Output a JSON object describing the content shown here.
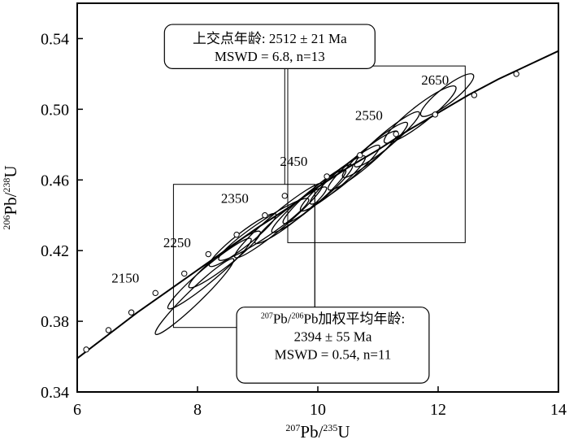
{
  "chart_data": {
    "type": "scatter",
    "x_axis": {
      "range": [
        6,
        14
      ],
      "ticks": [
        6,
        8,
        10,
        12,
        14
      ],
      "tick_labels": [
        "6",
        "8",
        "10",
        "12",
        "14"
      ],
      "label": {
        "sup1": "207",
        "main1": "Pb/",
        "sup2": "235",
        "main2": "U"
      }
    },
    "y_axis": {
      "range": [
        0.34,
        0.56
      ],
      "ticks": [
        0.34,
        0.38,
        0.42,
        0.46,
        0.5,
        0.54
      ],
      "tick_labels": [
        "0.34",
        "0.38",
        "0.42",
        "0.46",
        "0.50",
        "0.54"
      ],
      "label": {
        "sup1": "206",
        "main1": "Pb/",
        "sup2": "238",
        "main2": "U"
      }
    },
    "concordia": {
      "x": [
        6.0,
        6.5,
        7.0,
        7.5,
        8.0,
        8.5,
        9.0,
        9.5,
        10.0,
        10.5,
        11.0,
        11.5,
        12.0,
        12.5,
        13.0,
        13.5,
        14.0
      ],
      "y": [
        0.359,
        0.372,
        0.385,
        0.397,
        0.409,
        0.421,
        0.433,
        0.444,
        0.456,
        0.467,
        0.477,
        0.488,
        0.498,
        0.508,
        0.517,
        0.525,
        0.533
      ]
    },
    "age_markers": [
      {
        "x": 6.15,
        "y": 0.364
      },
      {
        "x": 6.52,
        "y": 0.375
      },
      {
        "x": 6.9,
        "y": 0.385
      },
      {
        "x": 7.3,
        "y": 0.396
      },
      {
        "x": 7.78,
        "y": 0.407
      },
      {
        "x": 8.18,
        "y": 0.418
      },
      {
        "x": 8.65,
        "y": 0.429
      },
      {
        "x": 9.12,
        "y": 0.44
      },
      {
        "x": 9.45,
        "y": 0.451
      },
      {
        "x": 10.15,
        "y": 0.462
      },
      {
        "x": 10.7,
        "y": 0.474
      },
      {
        "x": 11.3,
        "y": 0.486
      },
      {
        "x": 11.95,
        "y": 0.497
      },
      {
        "x": 12.6,
        "y": 0.508
      },
      {
        "x": 13.3,
        "y": 0.52
      }
    ],
    "age_labels": [
      {
        "text": "2150",
        "x": 6.8,
        "y": 0.402
      },
      {
        "text": "2250",
        "x": 7.66,
        "y": 0.422
      },
      {
        "text": "2350",
        "x": 8.62,
        "y": 0.447
      },
      {
        "text": "2450",
        "x": 9.6,
        "y": 0.468
      },
      {
        "text": "2550",
        "x": 10.85,
        "y": 0.494
      },
      {
        "text": "2650",
        "x": 11.95,
        "y": 0.514
      }
    ],
    "ellipses": [
      {
        "cx": 7.95,
        "cy": 0.394,
        "rx": 0.9,
        "ry": 0.004,
        "angle": 44
      },
      {
        "cx": 8.2,
        "cy": 0.407,
        "rx": 0.9,
        "ry": 0.0042,
        "angle": 40
      },
      {
        "cx": 8.45,
        "cy": 0.415,
        "rx": 0.75,
        "ry": 0.004,
        "angle": 38
      },
      {
        "cx": 8.75,
        "cy": 0.426,
        "rx": 0.7,
        "ry": 0.004,
        "angle": 38
      },
      {
        "cx": 9.1,
        "cy": 0.432,
        "rx": 0.9,
        "ry": 0.0045,
        "angle": 34
      },
      {
        "cx": 9.35,
        "cy": 0.437,
        "rx": 0.95,
        "ry": 0.0045,
        "angle": 40
      },
      {
        "cx": 9.55,
        "cy": 0.44,
        "rx": 0.75,
        "ry": 0.004,
        "angle": 38
      },
      {
        "cx": 9.85,
        "cy": 0.448,
        "rx": 0.8,
        "ry": 0.004,
        "angle": 40
      },
      {
        "cx": 10.0,
        "cy": 0.452,
        "rx": 0.75,
        "ry": 0.004,
        "angle": 40
      },
      {
        "cx": 10.25,
        "cy": 0.458,
        "rx": 0.7,
        "ry": 0.004,
        "angle": 40
      },
      {
        "cx": 10.45,
        "cy": 0.463,
        "rx": 0.75,
        "ry": 0.004,
        "angle": 40
      },
      {
        "cx": 10.75,
        "cy": 0.471,
        "rx": 0.75,
        "ry": 0.0042,
        "angle": 40
      },
      {
        "cx": 10.95,
        "cy": 0.477,
        "rx": 0.7,
        "ry": 0.004,
        "angle": 40
      },
      {
        "cx": 11.15,
        "cy": 0.483,
        "rx": 0.7,
        "ry": 0.004,
        "angle": 40
      },
      {
        "cx": 11.7,
        "cy": 0.497,
        "rx": 0.75,
        "ry": 0.005,
        "angle": 38
      },
      {
        "cx": 12.15,
        "cy": 0.508,
        "rx": 0.55,
        "ry": 0.0045,
        "angle": 38
      }
    ],
    "zoom_boxes": [
      {
        "x1": 9.5,
        "y1": 0.4245,
        "x2": 12.45,
        "y2": 0.5245
      },
      {
        "x1": 7.6,
        "y1": 0.3765,
        "x2": 9.95,
        "y2": 0.4575
      }
    ],
    "annotations": [
      {
        "lines": [
          "上交点年龄: 2512 ± 21 Ma",
          "MSWD = 6.8, n=13"
        ],
        "x1": 7.45,
        "y1": 0.523,
        "x2": 10.95,
        "y2": 0.548,
        "leader": [
          [
            9.45,
            0.523
          ],
          [
            9.45,
            0.4575
          ]
        ]
      },
      {
        "lines": [
          "Pb/",
          "Pb加权平均年龄:",
          "2394 ± 55 Ma",
          "MSWD = 0.54, n=11"
        ],
        "sup": [
          "207",
          "206"
        ],
        "x1": 8.65,
        "y1": 0.345,
        "x2": 11.85,
        "y2": 0.388,
        "leader": [
          [
            9.95,
            0.388
          ],
          [
            9.95,
            0.4575
          ]
        ]
      }
    ]
  }
}
